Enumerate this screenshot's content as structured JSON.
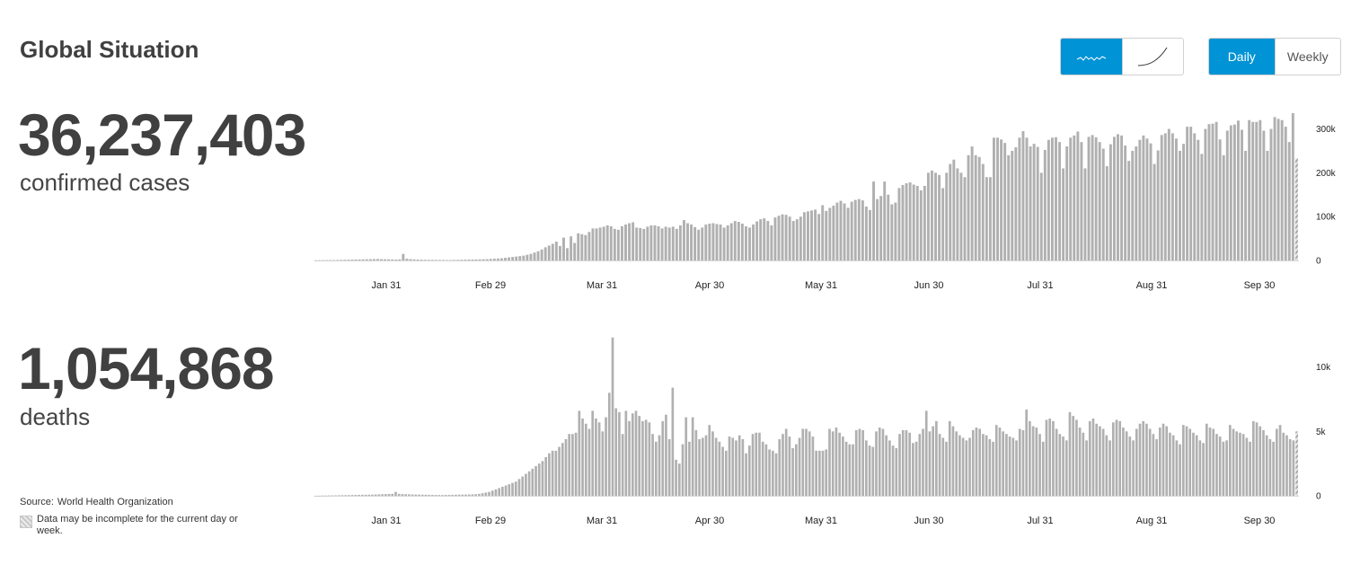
{
  "header": {
    "title": "Global Situation"
  },
  "controls": {
    "chart_style": {
      "options": [
        "daily-sparkline-icon",
        "cumulative-curve-icon"
      ],
      "selected": "daily-sparkline-icon"
    },
    "period": {
      "options": [
        "Daily",
        "Weekly"
      ],
      "daily_label": "Daily",
      "weekly_label": "Weekly",
      "selected": "Daily"
    }
  },
  "summary": {
    "cases_total": "36,237,403",
    "cases_label": "confirmed cases",
    "deaths_total": "1,054,868",
    "deaths_label": "deaths"
  },
  "footer": {
    "source_label": "Source:",
    "source_name": "World Health Organization",
    "note": "Data may be incomplete for the current day or week."
  },
  "colors": {
    "accent": "#0093d5",
    "bar": "#b0b0b0",
    "text": "#404040"
  },
  "chart_data": [
    {
      "type": "bar",
      "name": "confirmed cases",
      "x_start": "2020-01-11",
      "x_end": "2020-10-11",
      "x_ticks": [
        "Jan 31",
        "Feb 29",
        "Mar 31",
        "Apr 30",
        "May 31",
        "Jun 30",
        "Jul 31",
        "Aug 31",
        "Sep 30"
      ],
      "y_ticks": [
        "0",
        "100k",
        "200k",
        "300k"
      ],
      "ylim": [
        0,
        340000
      ],
      "last_bar_incomplete": true,
      "values": [
        500,
        600,
        700,
        800,
        900,
        1000,
        1200,
        1400,
        1600,
        1800,
        2000,
        2200,
        2400,
        2600,
        2800,
        3000,
        3200,
        3400,
        3000,
        2800,
        2600,
        2400,
        2200,
        2600,
        15000,
        4000,
        3000,
        2500,
        2000,
        1800,
        1600,
        1500,
        1400,
        1300,
        1200,
        1100,
        1000,
        1000,
        1200,
        1400,
        1600,
        1800,
        2000,
        2200,
        2400,
        2600,
        2800,
        3000,
        3500,
        4000,
        4500,
        5000,
        6000,
        7000,
        8000,
        9000,
        10000,
        11000,
        13000,
        15000,
        18000,
        21000,
        25000,
        30000,
        34000,
        38000,
        43000,
        33000,
        52000,
        28000,
        55000,
        40000,
        62000,
        60000,
        58000,
        65000,
        73000,
        73000,
        75000,
        77000,
        80000,
        78000,
        72000,
        70000,
        78000,
        82000,
        85000,
        87000,
        75000,
        74000,
        72000,
        77000,
        80000,
        80000,
        78000,
        73000,
        77000,
        75000,
        77000,
        72000,
        80000,
        92000,
        85000,
        82000,
        76000,
        70000,
        75000,
        82000,
        84000,
        85000,
        83000,
        82000,
        75000,
        80000,
        85000,
        90000,
        88000,
        84000,
        78000,
        75000,
        82000,
        89000,
        94000,
        96000,
        90000,
        80000,
        98000,
        102000,
        105000,
        104000,
        100000,
        90000,
        94000,
        100000,
        110000,
        112000,
        114000,
        116000,
        106000,
        126000,
        113000,
        120000,
        125000,
        132000,
        136000,
        130000,
        120000,
        134000,
        138000,
        140000,
        137000,
        123000,
        115000,
        180000,
        140000,
        147000,
        180000,
        150000,
        128000,
        132000,
        165000,
        172000,
        176000,
        178000,
        173000,
        170000,
        160000,
        170000,
        200000,
        205000,
        200000,
        195000,
        165000,
        200000,
        220000,
        230000,
        210000,
        200000,
        190000,
        240000,
        260000,
        240000,
        236000,
        220000,
        190000,
        190000,
        280000,
        280000,
        276000,
        268000,
        240000,
        250000,
        258000,
        280000,
        295000,
        280000,
        260000,
        266000,
        259000,
        200000,
        252000,
        275000,
        280000,
        281000,
        270000,
        210000,
        260000,
        280000,
        285000,
        294000,
        270000,
        210000,
        282000,
        286000,
        281000,
        270000,
        255000,
        215000,
        265000,
        282000,
        288000,
        285000,
        262000,
        227000,
        250000,
        260000,
        275000,
        285000,
        278000,
        267000,
        220000,
        251000,
        286000,
        290000,
        300000,
        290000,
        278000,
        250000,
        266000,
        305000,
        305000,
        290000,
        275000,
        243000,
        300000,
        311000,
        312000,
        316000,
        276000,
        240000,
        296000,
        308000,
        310000,
        319000,
        298000,
        250000,
        320000,
        316000,
        316000,
        320000,
        296000,
        250000,
        300000,
        327000,
        323000,
        320000,
        305000,
        270000,
        336000,
        233000
      ]
    },
    {
      "type": "bar",
      "name": "deaths",
      "x_start": "2020-01-11",
      "x_end": "2020-10-11",
      "x_ticks": [
        "Jan 31",
        "Feb 29",
        "Mar 31",
        "Apr 30",
        "May 31",
        "Jun 30",
        "Jul 31",
        "Aug 31",
        "Sep 30"
      ],
      "y_ticks": [
        "0",
        "5k",
        "10k"
      ],
      "ylim": [
        0,
        12000
      ],
      "last_bar_incomplete": true,
      "values": [
        5,
        10,
        15,
        20,
        25,
        30,
        35,
        40,
        45,
        50,
        55,
        60,
        65,
        70,
        75,
        80,
        85,
        90,
        100,
        110,
        120,
        130,
        140,
        150,
        300,
        150,
        130,
        120,
        110,
        100,
        95,
        90,
        85,
        80,
        75,
        70,
        65,
        60,
        60,
        65,
        70,
        75,
        80,
        85,
        90,
        95,
        100,
        110,
        120,
        150,
        200,
        250,
        300,
        400,
        500,
        600,
        700,
        800,
        900,
        1000,
        1100,
        1300,
        1500,
        1700,
        1900,
        2100,
        2300,
        2500,
        2700,
        3000,
        3300,
        3500,
        3500,
        3800,
        4100,
        4400,
        4800,
        4800,
        4900,
        6600,
        6000,
        5600,
        5200,
        6600,
        6000,
        5700,
        5000,
        6100,
        8000,
        12300,
        6800,
        6500,
        4800,
        6600,
        5800,
        6400,
        6600,
        6200,
        5800,
        5900,
        5700,
        4800,
        4200,
        4700,
        5800,
        6300,
        4400,
        8400,
        2800,
        2500,
        4000,
        6100,
        4200,
        6100,
        5100,
        4400,
        4500,
        4700,
        5500,
        5000,
        4500,
        4200,
        3800,
        3500,
        4600,
        4500,
        4300,
        4700,
        4400,
        3300,
        3900,
        4800,
        4900,
        4900,
        4200,
        4000,
        3600,
        3500,
        3300,
        4400,
        4800,
        5200,
        4600,
        3700,
        4000,
        4500,
        5200,
        5200,
        5000,
        4600,
        3500,
        3500,
        3500,
        3600,
        5200,
        5000,
        5300,
        4900,
        4600,
        4200,
        4000,
        4000,
        5100,
        5200,
        5100,
        4300,
        3900,
        3800,
        5000,
        5300,
        5200,
        4700,
        4300,
        3900,
        3700,
        4800,
        5100,
        5100,
        4900,
        4100,
        4200,
        4800,
        5200,
        6600,
        5000,
        5400,
        5800,
        4800,
        4500,
        4200,
        5800,
        5400,
        5000,
        4700,
        4500,
        4300,
        4500,
        5100,
        5300,
        5200,
        4800,
        4700,
        4400,
        4200,
        5500,
        5300,
        5000,
        4800,
        4600,
        4500,
        4300,
        5200,
        5100,
        6700,
        5800,
        5400,
        5300,
        4800,
        4200,
        5900,
        6000,
        5800,
        5200,
        4800,
        4600,
        4300,
        6500,
        6200,
        5900,
        5300,
        4900,
        4300,
        5800,
        6000,
        5600,
        5400,
        5200,
        4700,
        4300,
        5700,
        5900,
        5800,
        5300,
        5000,
        4600,
        4300,
        5200,
        5600,
        5800,
        5600,
        5200,
        4800,
        4400,
        5300,
        5600,
        5400,
        4900,
        4700,
        4300,
        4000,
        5500,
        5400,
        5200,
        4900,
        4700,
        4300,
        4100,
        5600,
        5300,
        5200,
        4800,
        4600,
        4200,
        4300,
        5500,
        5200,
        5000,
        4900,
        4800,
        4500,
        4200,
        5800,
        5700,
        5400,
        5100,
        4700,
        4400,
        4200,
        5200,
        5500,
        4900,
        4700,
        4400,
        4300,
        5000
      ]
    }
  ]
}
